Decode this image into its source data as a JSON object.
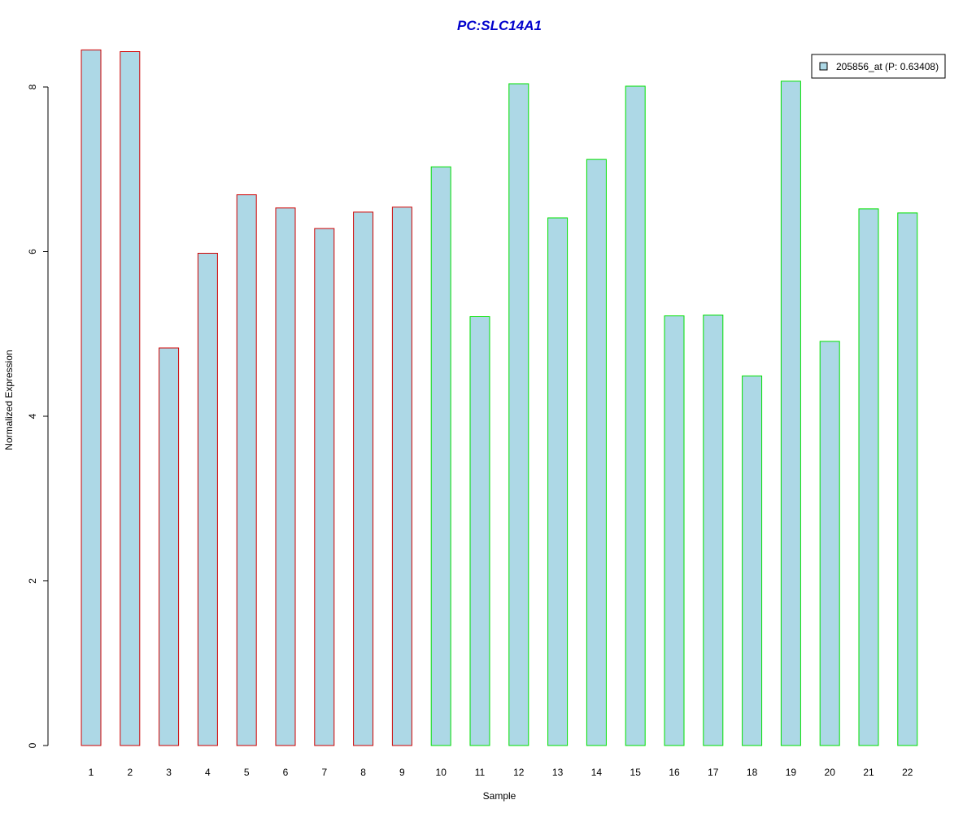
{
  "chart_data": {
    "type": "bar",
    "title": "PC:SLC14A1",
    "xlabel": "Sample",
    "ylabel": "Normalized Expression",
    "categories": [
      "1",
      "2",
      "3",
      "4",
      "5",
      "6",
      "7",
      "8",
      "9",
      "10",
      "11",
      "12",
      "13",
      "14",
      "15",
      "16",
      "17",
      "18",
      "19",
      "20",
      "21",
      "22"
    ],
    "values": [
      8.45,
      8.43,
      4.83,
      5.98,
      6.69,
      6.53,
      6.28,
      6.48,
      6.54,
      7.03,
      5.21,
      8.04,
      6.41,
      7.12,
      8.01,
      5.22,
      5.23,
      4.49,
      8.07,
      4.91,
      6.52,
      6.47
    ],
    "border_colors": [
      "#d00000",
      "#d00000",
      "#d00000",
      "#d00000",
      "#d00000",
      "#d00000",
      "#d00000",
      "#d00000",
      "#d00000",
      "#00e000",
      "#00e000",
      "#00e000",
      "#00e000",
      "#00e000",
      "#00e000",
      "#00e000",
      "#00e000",
      "#00e000",
      "#00e000",
      "#00e000",
      "#00e000",
      "#00e000"
    ],
    "fill_color": "#add8e6",
    "title_color": "#0000cc",
    "ylim": [
      0,
      8.45
    ],
    "yticks": [
      0,
      2,
      4,
      6,
      8
    ],
    "grid": false,
    "legend_position": "top-right",
    "legend": [
      {
        "label": "205856_at (P: 0.63408)",
        "color": "#add8e6"
      }
    ]
  }
}
